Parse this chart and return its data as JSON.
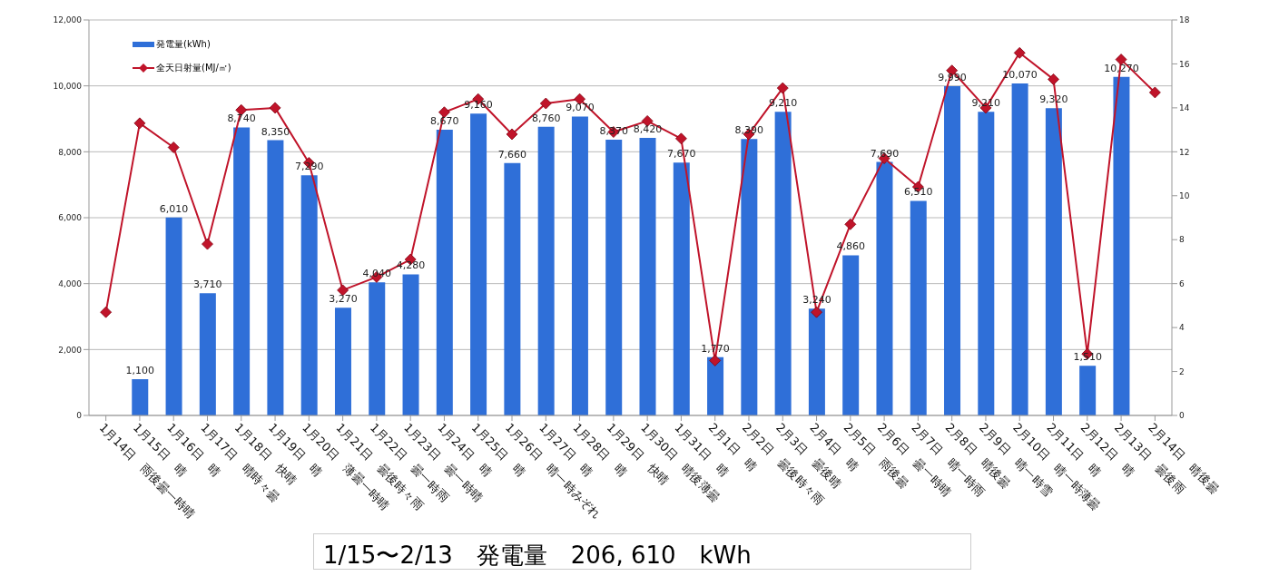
{
  "chart_data": {
    "type": "bar",
    "categories": [
      "1月14日　雨後曇一時晴",
      "1月15日　晴",
      "1月16日　晴",
      "1月17日　晴時々曇",
      "1月18日　快晴",
      "1月19日　晴",
      "1月20日　薄曇一時晴",
      "1月21日　曇後時々雨",
      "1月22日　曇一時雨",
      "1月23日　曇一時晴",
      "1月24日　晴",
      "1月25日　晴",
      "1月26日　晴一時みぞれ",
      "1月27日　晴",
      "1月28日　晴",
      "1月29日　快晴",
      "1月30日　晴後薄曇",
      "1月31日　晴",
      "2月1日　晴",
      "2月2日　曇後時々雨",
      "2月3日　曇後晴",
      "2月4日　晴",
      "2月5日　雨後曇",
      "2月6日　曇一時晴",
      "2月7日　晴一時雨",
      "2月8日　晴後曇",
      "2月9日　晴一時雪",
      "2月10日　晴一時薄曇",
      "2月11日　晴",
      "2月12日　晴",
      "2月13日　曇後雨",
      "2月14日　晴後曇"
    ],
    "series": [
      {
        "name": "発電量(kWh)",
        "color": "#2f6fd8",
        "values": [
          null,
          1100,
          6010,
          3710,
          8740,
          8350,
          7290,
          3270,
          4040,
          4280,
          8670,
          9160,
          7660,
          8760,
          9070,
          8370,
          8420,
          7670,
          1770,
          8390,
          9210,
          3240,
          4860,
          7690,
          6510,
          9990,
          9210,
          10070,
          9320,
          1510,
          10270,
          null
        ],
        "value_labels": [
          null,
          "1,100",
          "6,010",
          "3,710",
          "8,740",
          "8,350",
          "7,290",
          "3,270",
          "4,040",
          "4,280",
          "8,670",
          "9,160",
          "7,660",
          "8,760",
          "9,070",
          "8,370",
          "8,420",
          "7,670",
          "1,770",
          "8,390",
          "9,210",
          "3,240",
          "4,860",
          "7,690",
          "6,510",
          "9,990",
          "9,210",
          "10,070",
          "9,320",
          "1,510",
          "10,270",
          null
        ]
      },
      {
        "name": "全天日射量(MJ/㎡)",
        "type": "line",
        "axis": "y2",
        "color": "#c0142a",
        "values": [
          4.7,
          13.3,
          12.2,
          7.8,
          13.9,
          14.0,
          11.5,
          5.7,
          6.3,
          7.1,
          13.8,
          14.4,
          12.8,
          14.2,
          14.4,
          12.9,
          13.4,
          12.6,
          2.5,
          12.8,
          14.9,
          4.7,
          8.7,
          11.7,
          10.4,
          15.7,
          14.0,
          16.5,
          15.3,
          2.8,
          16.2,
          14.7
        ]
      }
    ],
    "ylim": [
      0,
      12000
    ],
    "yticks": [
      0,
      {
        "value": 2000,
        "label": "2,000"
      },
      {
        "value": 4000,
        "label": "4,000"
      },
      {
        "value": 6000,
        "label": "6,000"
      },
      {
        "value": 8000,
        "label": "8,000"
      },
      {
        "value": 10000,
        "label": "10,000"
      },
      {
        "value": 12000,
        "label": "12,000"
      }
    ],
    "y2lim": [
      0,
      18
    ],
    "y2ticks": [
      0,
      2,
      4,
      6,
      8,
      10,
      12,
      14,
      16,
      18
    ],
    "grid": "y",
    "legend": "top left",
    "marker": "diamond",
    "annotations": [
      "1/15〜2/13　発電量　206, 610　kWh"
    ]
  }
}
